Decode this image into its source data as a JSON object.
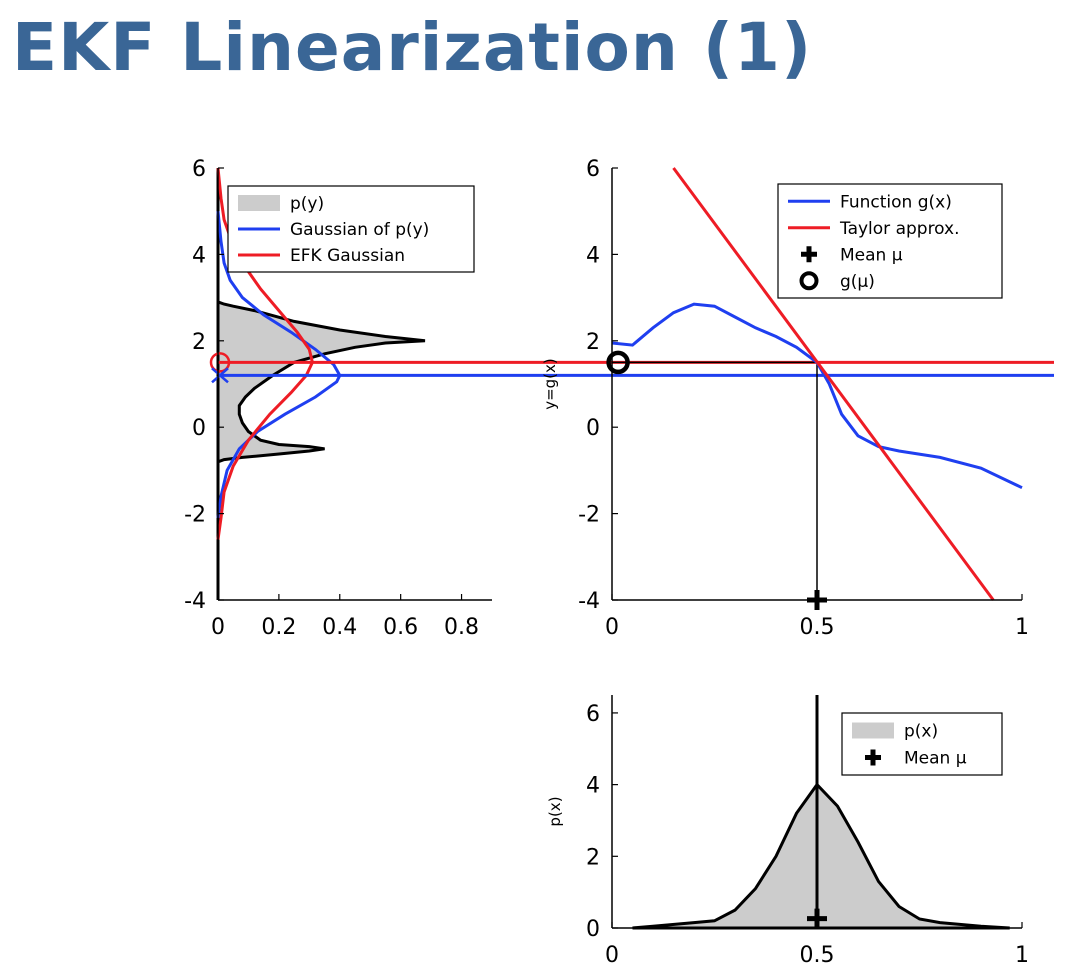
{
  "slide": {
    "title": "EKF Linearization (1)",
    "title_color": "#3a6696"
  },
  "colors": {
    "blue": "#1f3ff0",
    "red": "#ee1c25",
    "gray_fill": "#cccccc",
    "black": "#000000"
  },
  "chart_data": [
    {
      "id": "py",
      "type": "area",
      "orientation": "horizontal",
      "xlim": [
        0,
        0.9
      ],
      "ylim": [
        -4,
        6
      ],
      "xticks": [
        "0",
        "0.2",
        "0.4",
        "0.6",
        "0.8"
      ],
      "xtick_values": [
        0,
        0.2,
        0.4,
        0.6,
        0.8
      ],
      "yticks": [
        "-4",
        "-2",
        "0",
        "2",
        "4",
        "6"
      ],
      "ytick_values": [
        -4,
        -2,
        0,
        2,
        4,
        6
      ],
      "xlabel": "",
      "ylabel": "",
      "legend": {
        "position": "top-right",
        "entries": [
          "p(y)",
          "Gaussian of p(y)",
          "EFK Gaussian"
        ]
      },
      "series": [
        {
          "name": "p(y)",
          "kind": "filled",
          "points": [
            [
              0,
              -4.0
            ],
            [
              0.0,
              -0.8
            ],
            [
              0.02,
              -0.75
            ],
            [
              0.08,
              -0.7
            ],
            [
              0.2,
              -0.62
            ],
            [
              0.3,
              -0.55
            ],
            [
              0.35,
              -0.5
            ],
            [
              0.3,
              -0.45
            ],
            [
              0.2,
              -0.4
            ],
            [
              0.14,
              -0.3
            ],
            [
              0.1,
              -0.1
            ],
            [
              0.08,
              0.1
            ],
            [
              0.07,
              0.3
            ],
            [
              0.07,
              0.5
            ],
            [
              0.09,
              0.7
            ],
            [
              0.12,
              0.9
            ],
            [
              0.18,
              1.2
            ],
            [
              0.25,
              1.5
            ],
            [
              0.35,
              1.7
            ],
            [
              0.45,
              1.85
            ],
            [
              0.55,
              1.95
            ],
            [
              0.68,
              2.0
            ],
            [
              0.55,
              2.1
            ],
            [
              0.4,
              2.25
            ],
            [
              0.25,
              2.45
            ],
            [
              0.12,
              2.7
            ],
            [
              0.05,
              2.8
            ],
            [
              0.02,
              2.85
            ],
            [
              0.0,
              2.9
            ],
            [
              0,
              6.0
            ]
          ]
        },
        {
          "name": "Gaussian of p(y)",
          "kind": "line",
          "points": [
            [
              0.0,
              -2.1
            ],
            [
              0.01,
              -1.6
            ],
            [
              0.03,
              -1.0
            ],
            [
              0.07,
              -0.5
            ],
            [
              0.13,
              -0.1
            ],
            [
              0.22,
              0.3
            ],
            [
              0.32,
              0.7
            ],
            [
              0.39,
              1.05
            ],
            [
              0.4,
              1.2
            ],
            [
              0.38,
              1.45
            ],
            [
              0.32,
              1.8
            ],
            [
              0.24,
              2.2
            ],
            [
              0.15,
              2.6
            ],
            [
              0.08,
              3.0
            ],
            [
              0.04,
              3.4
            ],
            [
              0.02,
              3.8
            ],
            [
              0.01,
              4.3
            ],
            [
              0.0,
              5.0
            ]
          ]
        },
        {
          "name": "EFK Gaussian",
          "kind": "line",
          "points": [
            [
              0.0,
              -2.6
            ],
            [
              0.01,
              -2.1
            ],
            [
              0.02,
              -1.5
            ],
            [
              0.05,
              -0.9
            ],
            [
              0.1,
              -0.3
            ],
            [
              0.17,
              0.3
            ],
            [
              0.24,
              0.8
            ],
            [
              0.29,
              1.2
            ],
            [
              0.31,
              1.5
            ],
            [
              0.3,
              1.8
            ],
            [
              0.26,
              2.2
            ],
            [
              0.2,
              2.7
            ],
            [
              0.14,
              3.2
            ],
            [
              0.09,
              3.7
            ],
            [
              0.05,
              4.2
            ],
            [
              0.02,
              4.8
            ],
            [
              0.01,
              5.3
            ],
            [
              0.0,
              6.0
            ]
          ]
        }
      ],
      "markers": [
        {
          "kind": "hline",
          "name": "EFK mean line",
          "y": 1.5,
          "color": "red"
        },
        {
          "kind": "hline",
          "name": "Gaussian mean line",
          "y": 1.2,
          "color": "blue"
        },
        {
          "kind": "circle",
          "name": "EFK mean marker",
          "x": 0.0,
          "y": 1.5,
          "color": "red"
        },
        {
          "kind": "cross",
          "name": "Gaussian mean marker",
          "x": 0.0,
          "y": 1.2,
          "color": "blue"
        }
      ]
    },
    {
      "id": "gx",
      "type": "line",
      "xlim": [
        0,
        1
      ],
      "ylim": [
        -4,
        6
      ],
      "xticks": [
        "0",
        "0.5",
        "1"
      ],
      "xtick_values": [
        0,
        0.5,
        1
      ],
      "yticks": [
        "-4",
        "-2",
        "0",
        "2",
        "4",
        "6"
      ],
      "ytick_values": [
        -4,
        -2,
        0,
        2,
        4,
        6
      ],
      "xlabel": "",
      "ylabel": "y=g(x)",
      "legend": {
        "position": "top-right",
        "entries": [
          "Function g(x)",
          "Taylor approx.",
          "Mean μ",
          "g(μ)"
        ]
      },
      "series": [
        {
          "name": "Function g(x)",
          "points": [
            [
              0.0,
              1.95
            ],
            [
              0.05,
              1.9
            ],
            [
              0.1,
              2.3
            ],
            [
              0.15,
              2.65
            ],
            [
              0.2,
              2.85
            ],
            [
              0.25,
              2.8
            ],
            [
              0.3,
              2.55
            ],
            [
              0.35,
              2.3
            ],
            [
              0.4,
              2.1
            ],
            [
              0.45,
              1.85
            ],
            [
              0.5,
              1.5
            ],
            [
              0.53,
              1.0
            ],
            [
              0.56,
              0.3
            ],
            [
              0.6,
              -0.2
            ],
            [
              0.65,
              -0.45
            ],
            [
              0.7,
              -0.55
            ],
            [
              0.8,
              -0.7
            ],
            [
              0.9,
              -0.95
            ],
            [
              1.0,
              -1.4
            ]
          ]
        },
        {
          "name": "Taylor approx.",
          "points": [
            [
              0.15,
              6.0
            ],
            [
              0.93,
              -4.0
            ]
          ]
        }
      ],
      "markers": [
        {
          "kind": "vline",
          "name": "mean drop line",
          "x": 0.5,
          "y_from": -4,
          "y_to": 1.5
        },
        {
          "kind": "hline",
          "name": "g(mu) level line",
          "y": 1.5,
          "x_from": 0,
          "x_to": 0.5
        },
        {
          "kind": "plus",
          "name": "mean marker",
          "x": 0.5,
          "y": -4
        },
        {
          "kind": "ring",
          "name": "g(mu) marker",
          "x": 0.01,
          "y": 1.5
        }
      ]
    },
    {
      "id": "px",
      "type": "area",
      "xlim": [
        0,
        1
      ],
      "ylim": [
        0,
        6.5
      ],
      "xticks": [
        "0",
        "0.5",
        "1"
      ],
      "xtick_values": [
        0,
        0.5,
        1
      ],
      "yticks": [
        "0",
        "2",
        "4",
        "6"
      ],
      "ytick_values": [
        0,
        2,
        4,
        6
      ],
      "xlabel": "",
      "ylabel": "p(x)",
      "legend": {
        "position": "top-right",
        "entries": [
          "p(x)",
          "Mean μ"
        ]
      },
      "series": [
        {
          "name": "p(x)",
          "kind": "filled",
          "points": [
            [
              0.05,
              0.0
            ],
            [
              0.1,
              0.05
            ],
            [
              0.2,
              0.15
            ],
            [
              0.25,
              0.2
            ],
            [
              0.3,
              0.5
            ],
            [
              0.35,
              1.1
            ],
            [
              0.4,
              2.0
            ],
            [
              0.45,
              3.2
            ],
            [
              0.5,
              4.0
            ],
            [
              0.55,
              3.4
            ],
            [
              0.6,
              2.4
            ],
            [
              0.65,
              1.3
            ],
            [
              0.7,
              0.6
            ],
            [
              0.75,
              0.25
            ],
            [
              0.8,
              0.15
            ],
            [
              0.9,
              0.05
            ],
            [
              0.97,
              0.0
            ]
          ]
        }
      ],
      "markers": [
        {
          "kind": "vline",
          "name": "mean line",
          "x": 0.5,
          "y_from": 0,
          "y_to": 6.5
        },
        {
          "kind": "plus",
          "name": "mean marker",
          "x": 0.5,
          "y": 0.15
        }
      ]
    }
  ]
}
